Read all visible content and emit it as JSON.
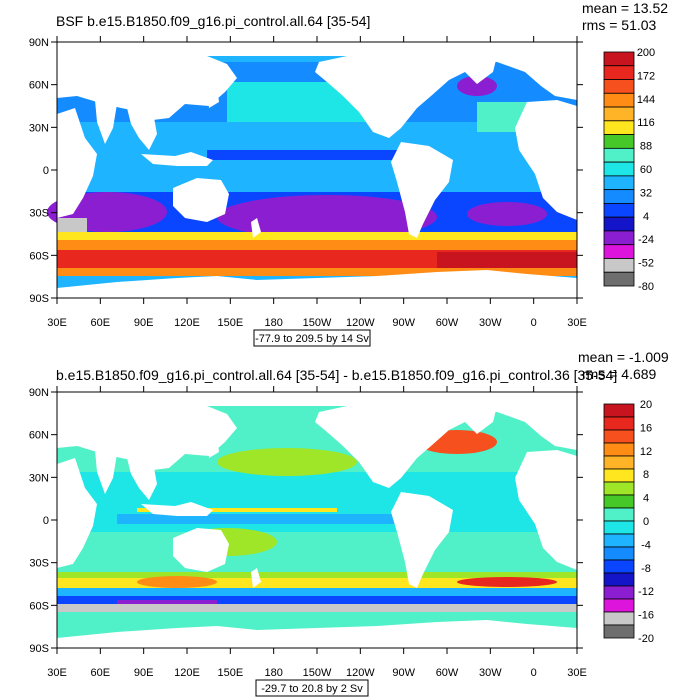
{
  "panels": [
    {
      "title": "BSF b.e15.B1850.f09_g16.pi_control.all.64 [35-54]",
      "mean_text": "mean = 13.52",
      "rms_text": "rms = 51.03",
      "range_text": "-77.9 to 209.5 by 14 Sv",
      "lat_labels": [
        "90N",
        "60N",
        "30N",
        "0",
        "30S",
        "60S",
        "90S"
      ],
      "lon_labels": [
        "30E",
        "60E",
        "90E",
        "120E",
        "150E",
        "180",
        "150W",
        "120W",
        "90W",
        "60W",
        "30W",
        "0",
        "30E"
      ],
      "colorbar_labels": [
        "200",
        "172",
        "144",
        "116",
        "88",
        "60",
        "32",
        "4",
        "-24",
        "-52",
        "-80"
      ],
      "colorbar_colors": [
        "#c8141e",
        "#e8281e",
        "#f5501e",
        "#ff8c14",
        "#ffb428",
        "#ffe61e",
        "#46c828",
        "#50f0c8",
        "#1ee6e6",
        "#1eb4ff",
        "#148cff",
        "#0a46ff",
        "#1414c8",
        "#8c1ed2",
        "#dc14dc",
        "#c8c8c8",
        "#6e6e6e"
      ]
    },
    {
      "title": "b.e15.B1850.f09_g16.pi_control.all.64 [35-54] - b.e15.B1850.f09_g16.pi_control.36 [35-54]",
      "mean_text": "mean = -1.009",
      "rms_text": "rms = 4.689",
      "range_text": "-29.7 to 20.8 by 2 Sv",
      "lat_labels": [
        "90N",
        "60N",
        "30N",
        "0",
        "30S",
        "60S",
        "90S"
      ],
      "lon_labels": [
        "30E",
        "60E",
        "90E",
        "120E",
        "150E",
        "180",
        "150W",
        "120W",
        "90W",
        "60W",
        "30W",
        "0",
        "30E"
      ],
      "colorbar_labels": [
        "20",
        "16",
        "12",
        "8",
        "4",
        "0",
        "-4",
        "-8",
        "-12",
        "-16",
        "-20"
      ],
      "colorbar_colors": [
        "#c8141e",
        "#e8281e",
        "#f5501e",
        "#ff8c14",
        "#ffb428",
        "#ffe61e",
        "#a0e628",
        "#46c828",
        "#50f0c8",
        "#1ee6e6",
        "#1eb4ff",
        "#148cff",
        "#0a46ff",
        "#1414c8",
        "#8c1ed2",
        "#dc14dc",
        "#c8c8c8",
        "#6e6e6e"
      ]
    }
  ]
}
